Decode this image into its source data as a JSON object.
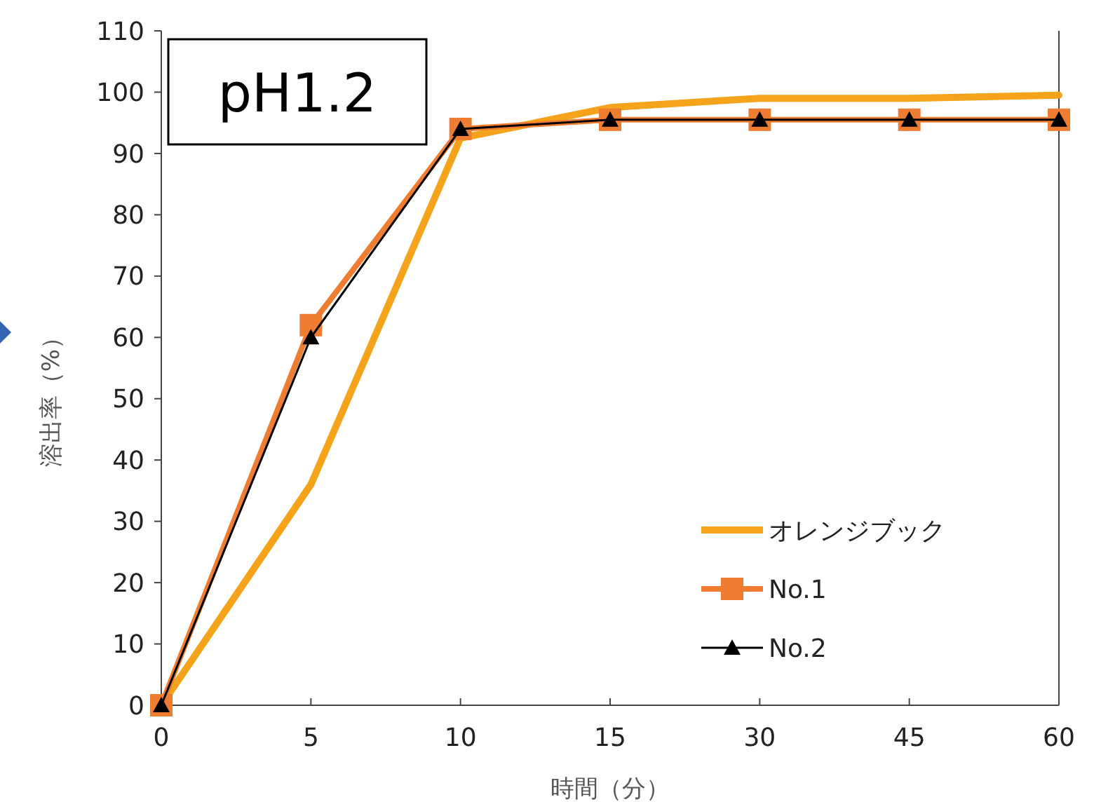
{
  "chart_data": {
    "type": "line",
    "xlabel": "時間（分）",
    "ylabel": "溶出率（%）",
    "categories": [
      "0",
      "5",
      "10",
      "15",
      "30",
      "45",
      "60"
    ],
    "ylim": [
      0,
      110
    ],
    "yticks": [
      0,
      10,
      20,
      30,
      40,
      50,
      60,
      70,
      80,
      90,
      100,
      110
    ],
    "grid": false,
    "legend": "bottom right",
    "annotations": [
      "pH1.2"
    ],
    "series": [
      {
        "name": "オレンジブック",
        "color": "#f5a31a",
        "marker": "none",
        "values": [
          0,
          36,
          92.5,
          97.5,
          99,
          99,
          99.5
        ]
      },
      {
        "name": "No.1",
        "color": "#ee7d31",
        "marker": "square",
        "values": [
          0,
          62,
          94,
          95.5,
          95.5,
          95.5,
          95.5
        ]
      },
      {
        "name": "No.2",
        "color": "#000000",
        "marker": "triangle",
        "values": [
          0,
          60,
          94,
          95.5,
          95.5,
          95.5,
          95.5
        ]
      }
    ]
  }
}
